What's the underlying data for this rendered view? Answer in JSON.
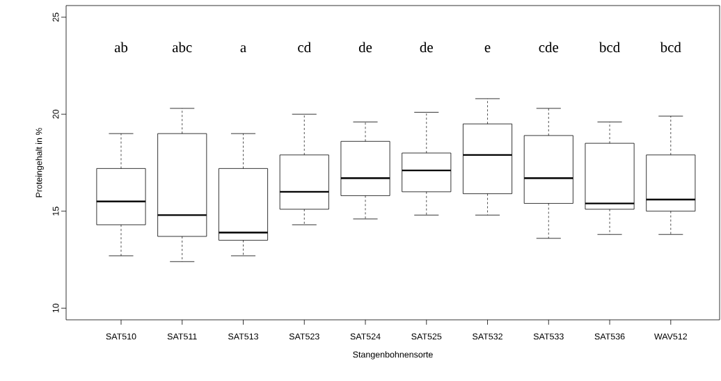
{
  "chart_data": {
    "type": "box",
    "xlabel": "Stangenbohnensorte",
    "ylabel": "Proteingehalt in %",
    "categories": [
      "SAT510",
      "SAT511",
      "SAT513",
      "SAT523",
      "SAT524",
      "SAT525",
      "SAT532",
      "SAT533",
      "SAT536",
      "WAV512"
    ],
    "boxes": [
      {
        "low": 12.7,
        "q1": 14.3,
        "median": 15.5,
        "q3": 17.2,
        "high": 19.0
      },
      {
        "low": 12.4,
        "q1": 13.7,
        "median": 14.8,
        "q3": 19.0,
        "high": 20.3
      },
      {
        "low": 12.7,
        "q1": 13.5,
        "median": 13.9,
        "q3": 17.2,
        "high": 19.0
      },
      {
        "low": 14.3,
        "q1": 15.1,
        "median": 16.0,
        "q3": 17.9,
        "high": 20.0
      },
      {
        "low": 14.6,
        "q1": 15.8,
        "median": 16.7,
        "q3": 18.6,
        "high": 19.6
      },
      {
        "low": 14.8,
        "q1": 16.0,
        "median": 17.1,
        "q3": 18.0,
        "high": 20.1
      },
      {
        "low": 14.8,
        "q1": 15.9,
        "median": 17.9,
        "q3": 19.5,
        "high": 20.8
      },
      {
        "low": 13.6,
        "q1": 15.4,
        "median": 16.7,
        "q3": 18.9,
        "high": 20.3
      },
      {
        "low": 13.8,
        "q1": 15.1,
        "median": 15.4,
        "q3": 18.5,
        "high": 19.6
      },
      {
        "low": 13.8,
        "q1": 15.0,
        "median": 15.6,
        "q3": 17.9,
        "high": 19.9
      }
    ],
    "annotations": [
      "ab",
      "abc",
      "a",
      "cd",
      "de",
      "de",
      "e",
      "cde",
      "bcd",
      "bcd"
    ],
    "ylim": [
      9.4,
      25.6
    ],
    "yticks": [
      10,
      15,
      20,
      25
    ],
    "grid": false
  }
}
